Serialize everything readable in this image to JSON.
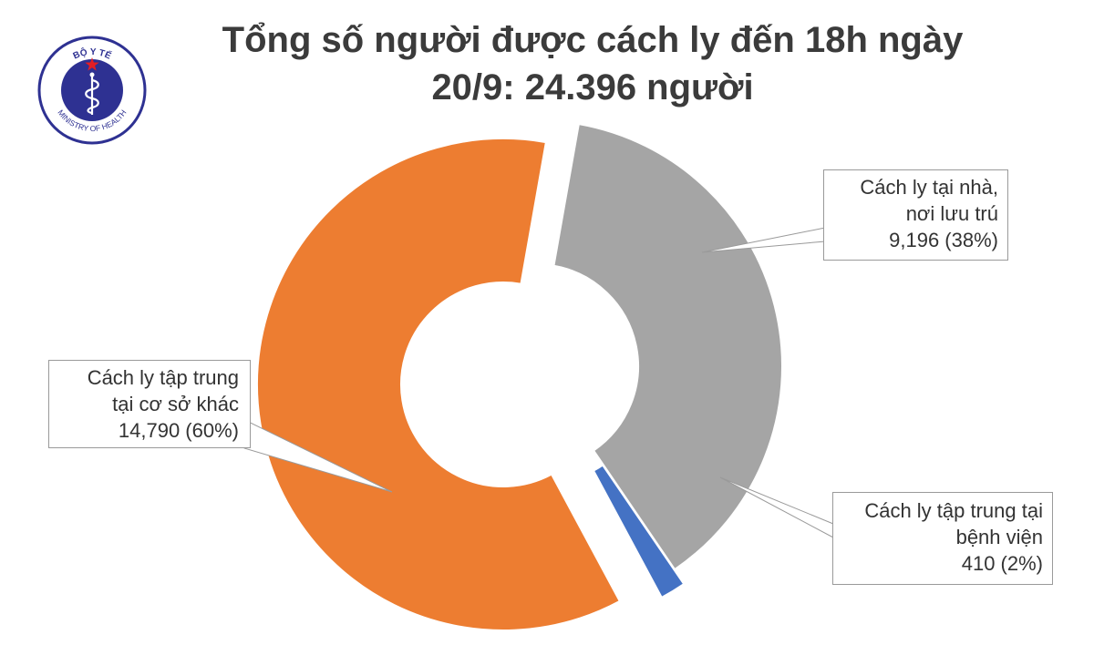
{
  "title": {
    "line1": "Tổng số người được cách ly đến 18h ngày",
    "line2": "20/9: 24.396 người"
  },
  "logo": {
    "top_text": "BỘ Y TẾ",
    "bottom_text": "MINISTRY OF HEALTH"
  },
  "colors": {
    "home": "#a5a5a5",
    "facility": "#ed7d31",
    "hospital": "#4472c4",
    "title": "#3b3b3b",
    "logo_blue": "#2e3192",
    "logo_red": "#e31e24"
  },
  "chart_data": {
    "type": "pie",
    "style": "donut-exploded",
    "slices": [
      {
        "key": "home",
        "label_lines": [
          "Cách ly tại nhà,",
          "nơi lưu trú",
          "9,196 (38%)"
        ],
        "value": 9196,
        "percent": 38
      },
      {
        "key": "hospital",
        "label_lines": [
          "Cách ly tập trung tại",
          "bệnh viện",
          "410 (2%)"
        ],
        "value": 410,
        "percent": 2
      },
      {
        "key": "facility",
        "label_lines": [
          "Cách ly tập trung",
          "tại cơ sở khác",
          "14,790 (60%)"
        ],
        "value": 14790,
        "percent": 60
      }
    ]
  }
}
